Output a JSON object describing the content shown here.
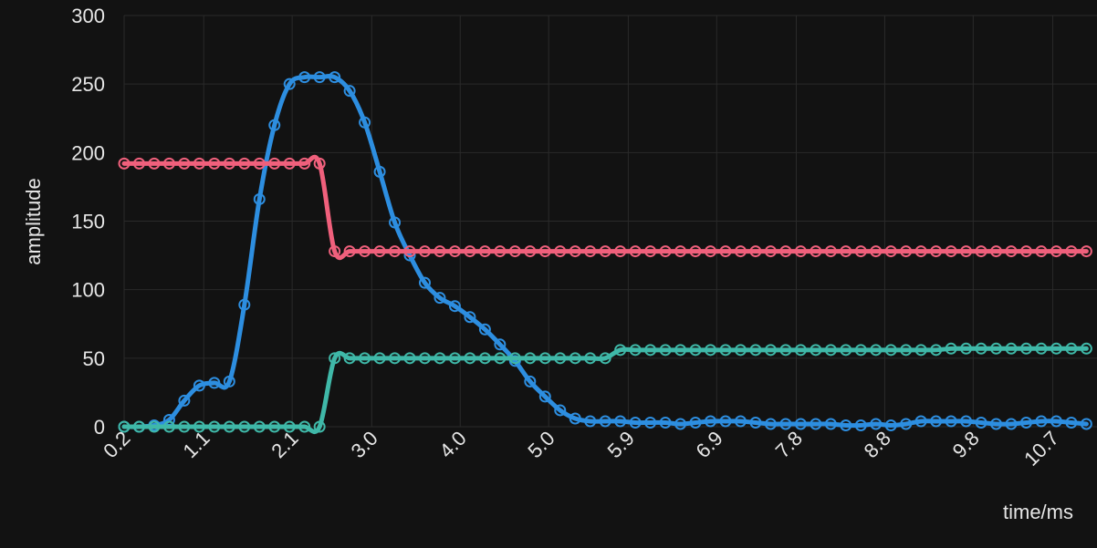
{
  "colors": {
    "background": "#121212",
    "grid": "#2a2a2a",
    "text": "#e6e6e6"
  },
  "chart_data": {
    "type": "line",
    "title": "",
    "xlabel": "time/ms",
    "ylabel": "amplitude",
    "grid": true,
    "legend": "none",
    "ylim": [
      0,
      300
    ],
    "xlim": [
      0.2,
      11.2
    ],
    "y_ticks": [
      0,
      50,
      100,
      150,
      200,
      250,
      300
    ],
    "y_tick_labels": [
      "0",
      "50",
      "100",
      "150",
      "200",
      "250",
      "300"
    ],
    "x_ticks": [
      0.2,
      1.1,
      2.1,
      3.0,
      4.0,
      5.0,
      5.9,
      6.9,
      7.8,
      8.8,
      9.8,
      10.7
    ],
    "x_tick_labels": [
      "0.2",
      "1.1",
      "2.1",
      "3.0",
      "4.0",
      "5.0",
      "5.9",
      "6.9",
      "7.8",
      "8.8",
      "9.8",
      "10.7"
    ],
    "x": [
      0.2,
      0.37,
      0.54,
      0.71,
      0.88,
      1.05,
      1.22,
      1.39,
      1.56,
      1.73,
      1.9,
      2.07,
      2.24,
      2.41,
      2.58,
      2.75,
      2.92,
      3.09,
      3.26,
      3.43,
      3.6,
      3.77,
      3.94,
      4.11,
      4.28,
      4.45,
      4.62,
      4.79,
      4.96,
      5.13,
      5.3,
      5.47,
      5.64,
      5.81,
      5.98,
      6.15,
      6.32,
      6.49,
      6.66,
      6.83,
      7.0,
      7.17,
      7.34,
      7.51,
      7.68,
      7.85,
      8.02,
      8.19,
      8.36,
      8.53,
      8.7,
      8.87,
      9.04,
      9.21,
      9.38,
      9.55,
      9.72,
      9.89,
      10.06,
      10.23,
      10.4,
      10.57,
      10.74,
      10.91,
      11.08
    ],
    "series": [
      {
        "color": "#2d8ee0",
        "values": [
          0,
          0,
          1,
          5,
          19,
          30,
          32,
          33,
          89,
          166,
          220,
          250,
          255,
          255,
          255,
          245,
          222,
          186,
          149,
          125,
          105,
          94,
          88,
          80,
          71,
          60,
          48,
          33,
          22,
          12,
          6,
          4,
          4,
          4,
          3,
          3,
          3,
          2,
          3,
          4,
          4,
          4,
          3,
          2,
          2,
          2,
          2,
          2,
          1,
          1,
          2,
          1,
          2,
          4,
          4,
          4,
          4,
          3,
          2,
          2,
          3,
          4,
          4,
          3,
          2
        ]
      },
      {
        "color": "#f0607c",
        "values": [
          192,
          192,
          192,
          192,
          192,
          192,
          192,
          192,
          192,
          192,
          192,
          192,
          192,
          192,
          128,
          128,
          128,
          128,
          128,
          128,
          128,
          128,
          128,
          128,
          128,
          128,
          128,
          128,
          128,
          128,
          128,
          128,
          128,
          128,
          128,
          128,
          128,
          128,
          128,
          128,
          128,
          128,
          128,
          128,
          128,
          128,
          128,
          128,
          128,
          128,
          128,
          128,
          128,
          128,
          128,
          128,
          128,
          128,
          128,
          128,
          128,
          128,
          128,
          128,
          128
        ]
      },
      {
        "color": "#3fb8a8",
        "values": [
          0,
          0,
          0,
          0,
          0,
          0,
          0,
          0,
          0,
          0,
          0,
          0,
          0,
          0,
          50,
          50,
          50,
          50,
          50,
          50,
          50,
          50,
          50,
          50,
          50,
          50,
          50,
          50,
          50,
          50,
          50,
          50,
          50,
          56,
          56,
          56,
          56,
          56,
          56,
          56,
          56,
          56,
          56,
          56,
          56,
          56,
          56,
          56,
          56,
          56,
          56,
          56,
          56,
          56,
          56,
          57,
          57,
          57,
          57,
          57,
          57,
          57,
          57,
          57,
          57
        ]
      }
    ]
  }
}
